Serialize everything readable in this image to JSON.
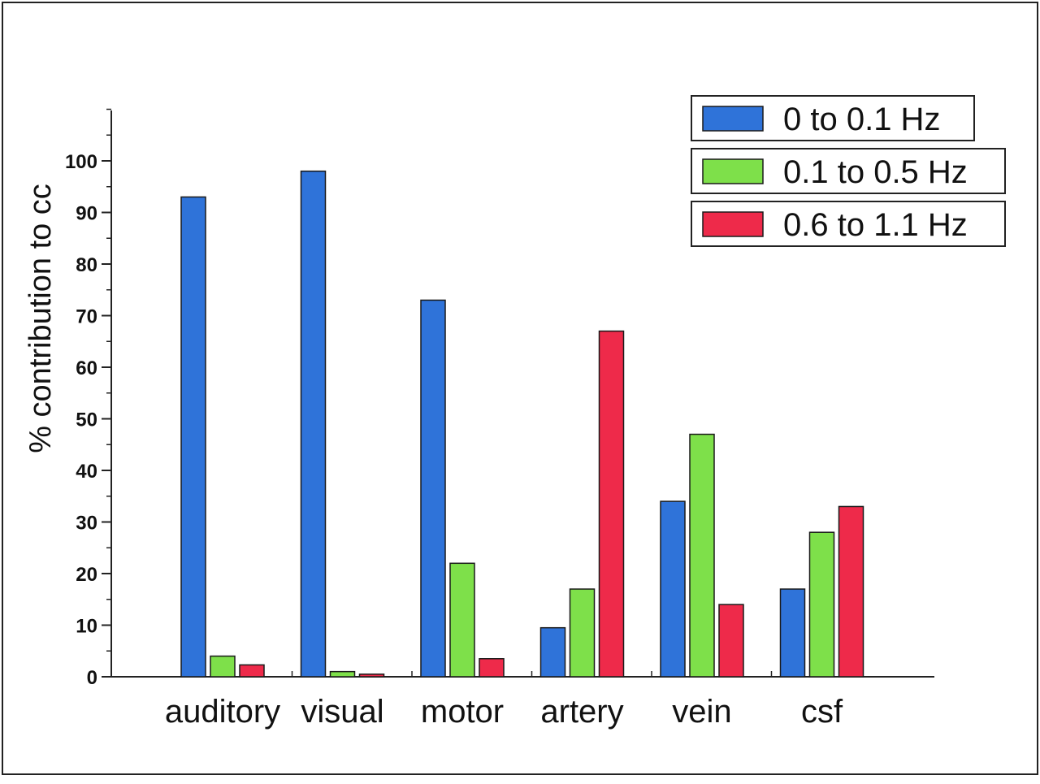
{
  "chart_data": {
    "type": "bar",
    "title": "",
    "xlabel": "",
    "ylabel": "% contribution to cc",
    "ylim": [
      0,
      100
    ],
    "yticks": [
      0,
      10,
      20,
      30,
      40,
      50,
      60,
      70,
      80,
      90,
      100
    ],
    "grid": false,
    "legend_position": "top-right",
    "categories": [
      "auditory",
      "visual",
      "motor",
      "artery",
      "vein",
      "csf"
    ],
    "series": [
      {
        "name": "0 to 0.1 Hz",
        "color": "#2f73d9",
        "values": [
          93,
          98,
          73,
          9.5,
          34,
          17
        ]
      },
      {
        "name": "0.1 to 0.5 Hz",
        "color": "#7ee04a",
        "values": [
          4,
          1,
          22,
          17,
          47,
          28
        ]
      },
      {
        "name": "0.6 to 1.1 Hz",
        "color": "#ee2a4a",
        "values": [
          2.3,
          0.5,
          3.5,
          67,
          14,
          33
        ]
      }
    ]
  }
}
